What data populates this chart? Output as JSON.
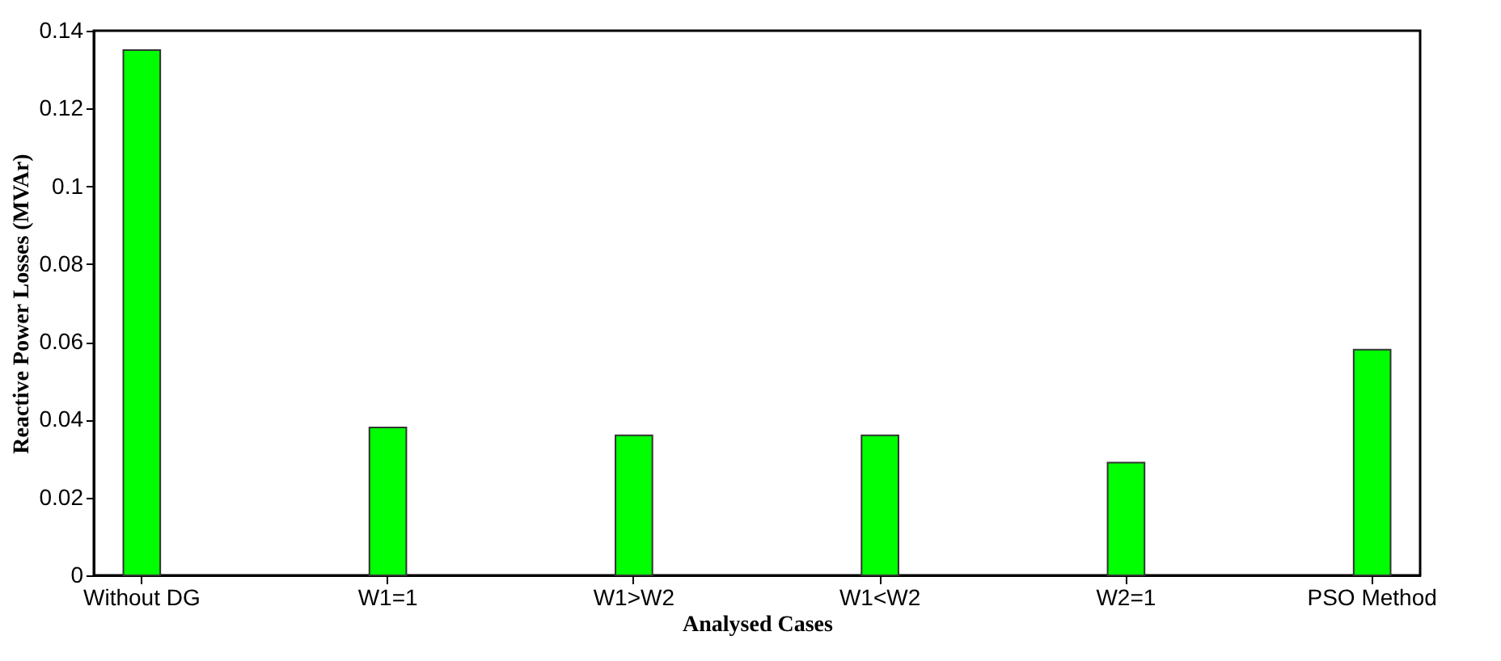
{
  "chart_data": {
    "type": "bar",
    "xlabel": "Analysed Cases",
    "ylabel": "Reactive Power Losses (MVAr)",
    "categories": [
      "Without DG",
      "W1=1",
      "W1>W2",
      "W1<W2",
      "W2=1",
      "PSO Method"
    ],
    "values": [
      0.135,
      0.038,
      0.036,
      0.036,
      0.029,
      0.058
    ],
    "color": "#00ff00",
    "ylim": [
      0,
      0.14
    ],
    "yticks": [
      0,
      0.02,
      0.04,
      0.06,
      0.08,
      0.1,
      0.12,
      0.14
    ],
    "grid": false,
    "legend": false
  }
}
